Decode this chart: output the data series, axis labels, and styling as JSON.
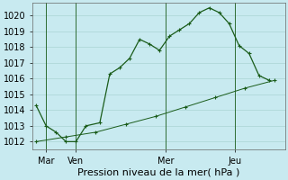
{
  "title": "Pression niveau de la mer( hPa )",
  "bg_color": "#c8eaf0",
  "grid_color": "#aad4d4",
  "line_color": "#1a5c1a",
  "ylim": [
    1011.5,
    1020.8
  ],
  "xlim": [
    -0.2,
    12.5
  ],
  "xtick_labels": [
    "Mar",
    "Ven",
    "Mer",
    "Jeu"
  ],
  "xtick_positions": [
    0.5,
    2.0,
    6.5,
    10.0
  ],
  "ytick_values": [
    1012,
    1013,
    1014,
    1015,
    1016,
    1017,
    1018,
    1019,
    1020
  ],
  "vline_positions": [
    0.5,
    2.0,
    6.5,
    10.0
  ],
  "line1_x": [
    0.0,
    0.5,
    1.0,
    1.5,
    2.0,
    2.5,
    3.2,
    3.7,
    4.2,
    4.7,
    5.2,
    5.7,
    6.2,
    6.7,
    7.2,
    7.7,
    8.2,
    8.7,
    9.2,
    9.7,
    10.2,
    10.7,
    11.2,
    11.7
  ],
  "line1_y": [
    1014.3,
    1013.0,
    1012.6,
    1012.0,
    1012.0,
    1013.0,
    1013.2,
    1016.3,
    1016.7,
    1017.3,
    1018.5,
    1018.2,
    1017.8,
    1018.7,
    1019.1,
    1019.5,
    1020.2,
    1020.5,
    1020.2,
    1019.5,
    1018.1,
    1017.6,
    1016.2,
    1015.9
  ],
  "line2_x": [
    0.0,
    1.5,
    3.0,
    4.5,
    6.0,
    7.5,
    9.0,
    10.5,
    12.0
  ],
  "line2_y": [
    1012.0,
    1012.3,
    1012.6,
    1013.1,
    1013.6,
    1014.2,
    1014.8,
    1015.4,
    1015.9
  ],
  "ytick_fontsize": 7,
  "xtick_fontsize": 7,
  "xlabel_fontsize": 8
}
